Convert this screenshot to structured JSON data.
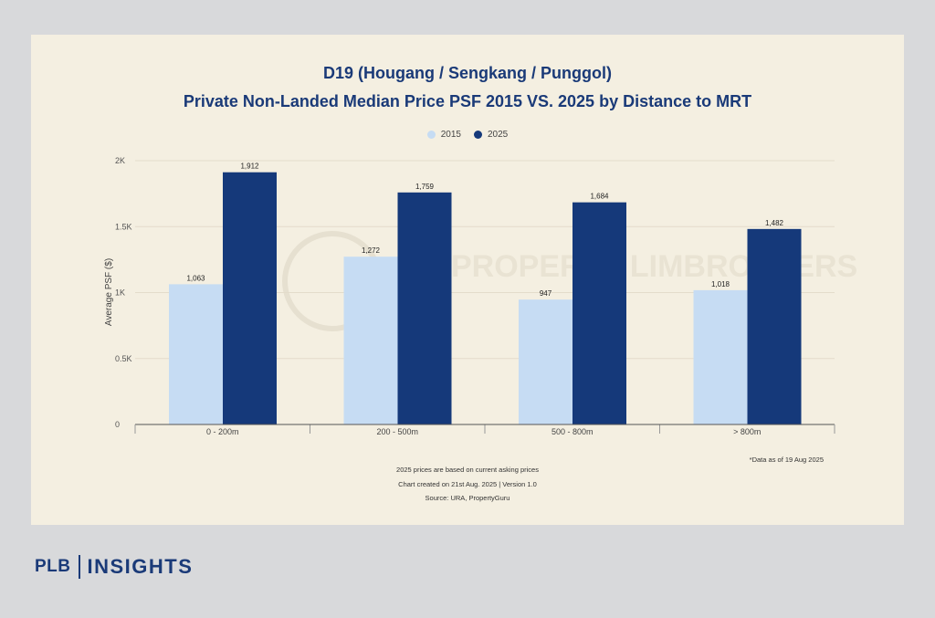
{
  "chart_data": {
    "type": "bar",
    "title": "D19 (Hougang / Sengkang / Punggol)",
    "subtitle": "Private Non-Landed Median Price PSF 2015 VS. 2025 by Distance to MRT",
    "categories": [
      "0 - 200m",
      "200 - 500m",
      "500 - 800m",
      "> 800m"
    ],
    "series": [
      {
        "name": "2015",
        "color": "#c6dcf3",
        "values": [
          1063,
          1272,
          947,
          1018
        ]
      },
      {
        "name": "2025",
        "color": "#15397a",
        "values": [
          1912,
          1759,
          1684,
          1482
        ]
      }
    ],
    "data_labels": {
      "2015": [
        "1,063",
        "1,272",
        "947",
        "1,018"
      ],
      "2025": [
        "1,912",
        "1,759",
        "1,684",
        "1,482"
      ]
    },
    "ylabel": "Average PSF ($)",
    "xlabel": "",
    "ylim": [
      0,
      2000
    ],
    "yticks": [
      0,
      500,
      1000,
      1500,
      2000
    ],
    "ytick_labels": [
      "0",
      "0.5K",
      "1K",
      "1.5K",
      "2K"
    ],
    "grid": true,
    "legend_position": "top-center",
    "watermark": "PROPERTY LIMBROTHERS"
  },
  "notes": {
    "data_as_of": "*Data as of 19 Aug 2025",
    "asking_prices": "2025 prices are based on current asking prices",
    "created": "Chart created on 21st Aug. 2025 | Version 1.0",
    "source": "Source: URA, PropertyGuru"
  },
  "brand": {
    "left": "PLB",
    "right": "INSIGHTS"
  }
}
